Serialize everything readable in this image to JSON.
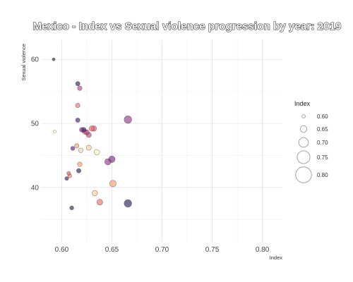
{
  "chart_data": {
    "type": "scatter",
    "title": "Mexico - Index vs Sexual violence progression by year: 2019",
    "xlabel": "Index",
    "ylabel": "Sexual violence",
    "xlim": [
      0.58,
      0.82
    ],
    "ylim": [
      31.5,
      63
    ],
    "x_ticks": [
      "0.60",
      "0.65",
      "0.70",
      "0.75",
      "0.80"
    ],
    "y_ticks": [
      "40",
      "50",
      "60"
    ],
    "grid": true,
    "legend": {
      "title": "Index",
      "placement": "right",
      "entries": [
        "0.60",
        "0.65",
        "0.70",
        "0.75",
        "0.80"
      ]
    },
    "points": [
      {
        "x": 0.592,
        "y": 60.0,
        "index": 0.592,
        "color": "#1d1147"
      },
      {
        "x": 0.593,
        "y": 48.7,
        "index": 0.593,
        "color": "#fcfdbf"
      },
      {
        "x": 0.605,
        "y": 41.4,
        "index": 0.605,
        "color": "#251255"
      },
      {
        "x": 0.607,
        "y": 42.2,
        "index": 0.607,
        "color": "#de4968"
      },
      {
        "x": 0.608,
        "y": 41.8,
        "index": 0.608,
        "color": "#f8765c"
      },
      {
        "x": 0.61,
        "y": 36.8,
        "index": 0.61,
        "color": "#1c1044"
      },
      {
        "x": 0.611,
        "y": 46.1,
        "index": 0.611,
        "color": "#51127c"
      },
      {
        "x": 0.615,
        "y": 46.5,
        "index": 0.615,
        "color": "#fd9668"
      },
      {
        "x": 0.616,
        "y": 56.2,
        "index": 0.616,
        "color": "#1d1147"
      },
      {
        "x": 0.616,
        "y": 52.8,
        "index": 0.616,
        "color": "#f1605d"
      },
      {
        "x": 0.616,
        "y": 50.5,
        "index": 0.616,
        "color": "#3b0f70"
      },
      {
        "x": 0.617,
        "y": 42.6,
        "index": 0.617,
        "color": "#1d1147"
      },
      {
        "x": 0.618,
        "y": 55.5,
        "index": 0.618,
        "color": "#b73779"
      },
      {
        "x": 0.618,
        "y": 43.6,
        "index": 0.618,
        "color": "#fd9668"
      },
      {
        "x": 0.619,
        "y": 45.8,
        "index": 0.619,
        "color": "#fcd5a0"
      },
      {
        "x": 0.62,
        "y": 49.0,
        "index": 0.62,
        "color": "#721f81"
      },
      {
        "x": 0.622,
        "y": 49.0,
        "index": 0.622,
        "color": "#3b0f70"
      },
      {
        "x": 0.623,
        "y": 48.7,
        "index": 0.623,
        "color": "#de4968"
      },
      {
        "x": 0.625,
        "y": 48.6,
        "index": 0.625,
        "color": "#b73779"
      },
      {
        "x": 0.627,
        "y": 48.2,
        "index": 0.627,
        "color": "#b73779"
      },
      {
        "x": 0.627,
        "y": 46.2,
        "index": 0.627,
        "color": "#fec98d"
      },
      {
        "x": 0.63,
        "y": 49.2,
        "index": 0.63,
        "color": "#f1605d"
      },
      {
        "x": 0.632,
        "y": 49.2,
        "index": 0.632,
        "color": "#de4968"
      },
      {
        "x": 0.633,
        "y": 39.1,
        "index": 0.633,
        "color": "#fec98d"
      },
      {
        "x": 0.635,
        "y": 45.5,
        "index": 0.635,
        "color": "#fcfdbf"
      },
      {
        "x": 0.638,
        "y": 37.7,
        "index": 0.638,
        "color": "#f1605d"
      },
      {
        "x": 0.646,
        "y": 44.0,
        "index": 0.646,
        "color": "#8c2981"
      },
      {
        "x": 0.65,
        "y": 44.4,
        "index": 0.65,
        "color": "#721f81"
      },
      {
        "x": 0.651,
        "y": 40.6,
        "index": 0.651,
        "color": "#fd9668"
      },
      {
        "x": 0.666,
        "y": 50.6,
        "index": 0.666,
        "color": "#8c2981"
      },
      {
        "x": 0.666,
        "y": 37.5,
        "index": 0.666,
        "color": "#1d1147"
      }
    ]
  }
}
